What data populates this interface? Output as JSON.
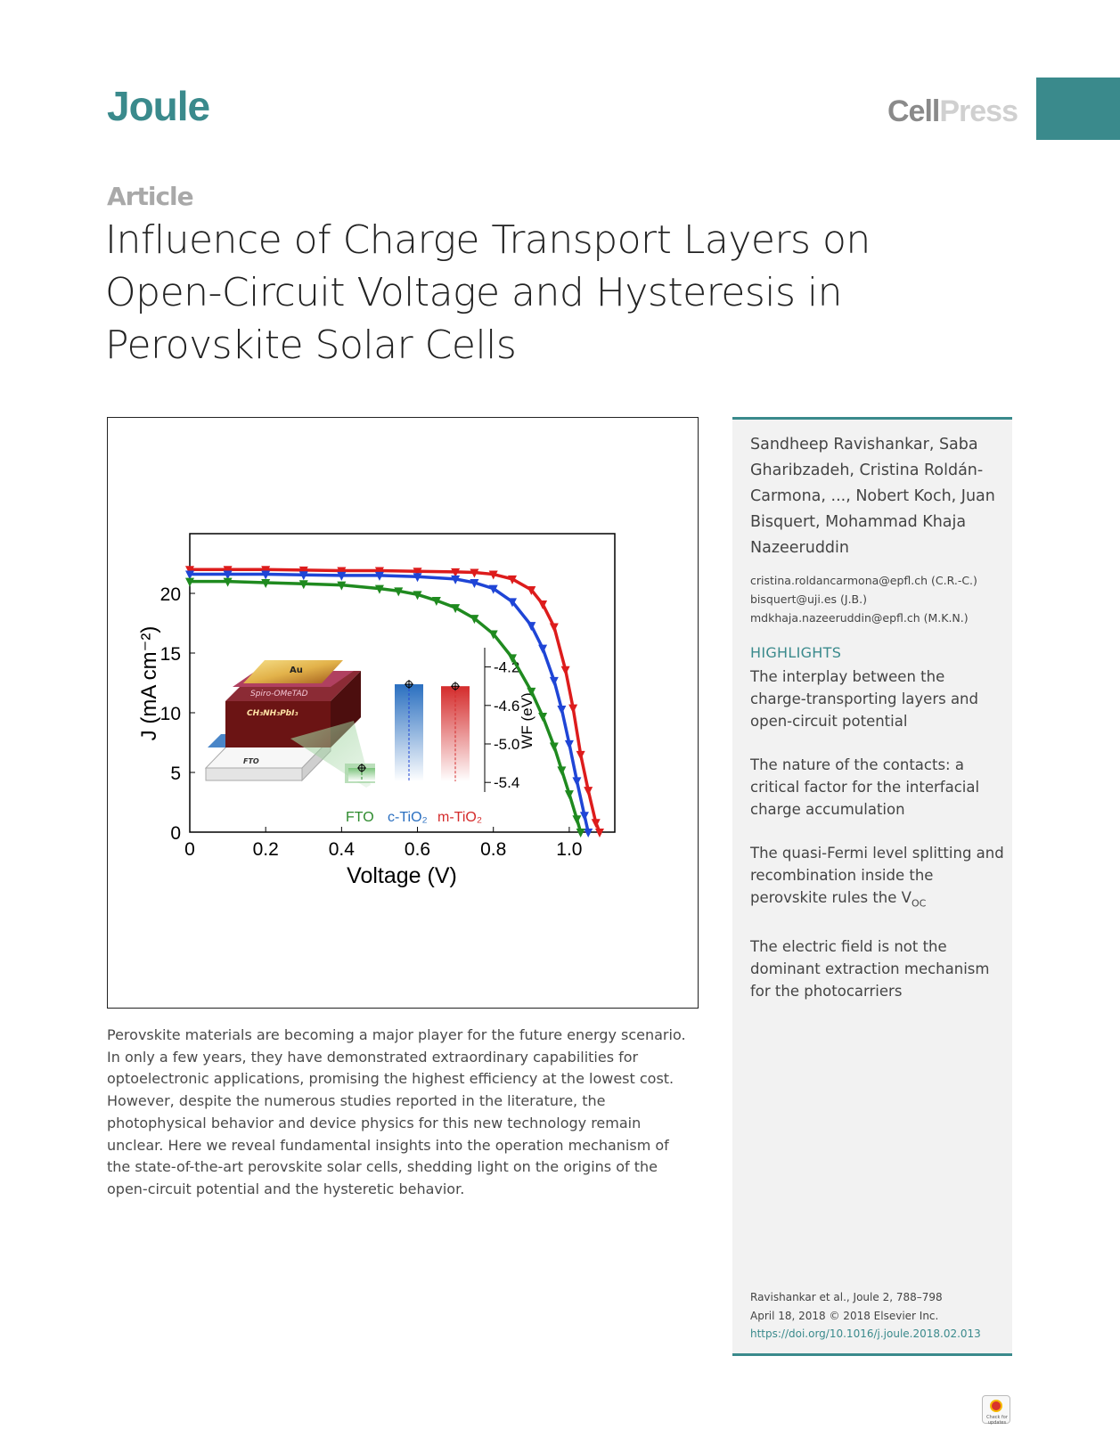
{
  "header": {
    "journal": "Joule",
    "publisher_part1": "Cell",
    "publisher_part2": "Press",
    "article_type": "Article"
  },
  "title": "Influence of Charge Transport Layers on Open-Circuit Voltage and Hysteresis in Perovskite Solar Cells",
  "figure": {
    "inset_layers": [
      "Au",
      "Spiro-OMeTAD",
      "CH₃NH₃PbI₃",
      "FTO"
    ],
    "inset_bars": [
      {
        "name": "FTO",
        "wf": -5.25,
        "color": "#2e8b2e"
      },
      {
        "name": "c-TiO₂",
        "wf": -4.38,
        "color": "#2a6fc0"
      },
      {
        "name": "m-TiO₂",
        "wf": -4.4,
        "color": "#d42b2b"
      }
    ],
    "wf_axis_label": "WF (eV)",
    "wf_ticks": [
      "-4.2",
      "-4.6",
      "-5.0",
      "-5.4"
    ]
  },
  "chart_data": {
    "type": "line",
    "xlabel": "Voltage (V)",
    "ylabel": "J (mA cm⁻²)",
    "xlim": [
      0,
      1.12
    ],
    "ylim": [
      0,
      25
    ],
    "xticks": [
      "0",
      "0.2",
      "0.4",
      "0.6",
      "0.8",
      "1.0"
    ],
    "yticks": [
      "0",
      "5",
      "10",
      "15",
      "20"
    ],
    "series": [
      {
        "color": "#dd1c1c",
        "x": [
          0.0,
          0.1,
          0.2,
          0.3,
          0.4,
          0.5,
          0.6,
          0.7,
          0.75,
          0.8,
          0.85,
          0.9,
          0.93,
          0.96,
          0.99,
          1.01,
          1.03,
          1.05,
          1.07,
          1.08
        ],
        "y": [
          22.0,
          22.0,
          22.0,
          21.95,
          21.9,
          21.9,
          21.85,
          21.8,
          21.75,
          21.6,
          21.2,
          20.3,
          19.1,
          17.2,
          13.6,
          10.4,
          6.5,
          3.5,
          0.8,
          0.0
        ]
      },
      {
        "color": "#1f45d6",
        "x": [
          0.0,
          0.1,
          0.2,
          0.3,
          0.4,
          0.5,
          0.6,
          0.7,
          0.75,
          0.8,
          0.85,
          0.9,
          0.93,
          0.96,
          0.98,
          1.0,
          1.02,
          1.04,
          1.05
        ],
        "y": [
          21.6,
          21.6,
          21.6,
          21.55,
          21.5,
          21.5,
          21.4,
          21.2,
          20.9,
          20.4,
          19.3,
          17.3,
          15.4,
          12.7,
          10.3,
          7.4,
          4.3,
          1.4,
          0.0
        ]
      },
      {
        "color": "#1f8a1f",
        "x": [
          0.0,
          0.1,
          0.2,
          0.3,
          0.4,
          0.5,
          0.55,
          0.6,
          0.65,
          0.7,
          0.75,
          0.8,
          0.85,
          0.9,
          0.93,
          0.96,
          0.98,
          1.0,
          1.02,
          1.03
        ],
        "y": [
          21.0,
          21.0,
          20.9,
          20.8,
          20.7,
          20.4,
          20.2,
          19.9,
          19.4,
          18.8,
          17.9,
          16.6,
          14.6,
          11.8,
          9.7,
          7.2,
          5.2,
          3.2,
          1.1,
          0.0
        ]
      }
    ]
  },
  "abstract": "Perovskite materials are becoming a major player for the future energy scenario. In only a few years, they have demonstrated extraordinary capabilities for optoelectronic applications, promising the highest efficiency at the lowest cost. However, despite the numerous studies reported in the literature, the photophysical behavior and device physics for this new technology remain unclear. Here we reveal fundamental insights into the operation mechanism of the state-of-the-art perovskite solar cells, shedding light on the origins of the open-circuit potential and the hysteretic behavior.",
  "sidebar": {
    "authors": "Sandheep Ravishankar, Saba Gharibzadeh, Cristina Roldán-Carmona, ..., Nobert Koch, Juan Bisquert, Mohammad Khaja Nazeeruddin",
    "emails": [
      "cristina.roldancarmona@epfl.ch (C.R.-C.)",
      "bisquert@uji.es (J.B.)",
      "mdkhaja.nazeeruddin@epfl.ch (M.K.N.)"
    ],
    "highlights_heading": "HIGHLIGHTS",
    "highlights": [
      "The interplay between the charge-transporting layers and open-circuit potential",
      "The nature of the contacts: a critical factor for the interfacial charge accumulation",
      "The quasi-Fermi level splitting and recombination inside the perovskite rules the V",
      "The electric field is not the dominant extraction mechanism for the photocarriers"
    ],
    "voc_subscript": "OC",
    "citation_line1": "Ravishankar et al., Joule 2, 788–798",
    "citation_line2": "April 18, 2018 © 2018 Elsevier Inc.",
    "doi": "https://doi.org/10.1016/j.joule.2018.02.013"
  },
  "crossmark_label": "Check for updates"
}
